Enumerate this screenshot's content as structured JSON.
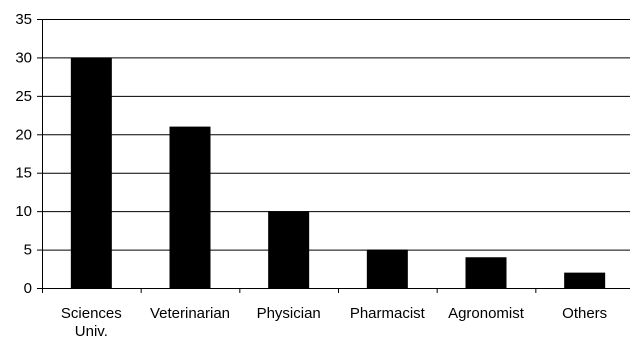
{
  "chart_data": {
    "type": "bar",
    "categories": [
      [
        "Sciences",
        "Univ."
      ],
      [
        "Veterinarian"
      ],
      [
        "Physician"
      ],
      [
        "Pharmacist"
      ],
      [
        "Agronomist"
      ],
      [
        "Others"
      ]
    ],
    "values": [
      30,
      21,
      10,
      5,
      4,
      2
    ],
    "ylim": [
      0,
      35
    ],
    "yticks": [
      0,
      5,
      10,
      15,
      20,
      25,
      30,
      35
    ],
    "grid": true,
    "bar_color": "#000000",
    "grid_color": "#000000",
    "title": "",
    "xlabel": "",
    "ylabel": ""
  }
}
